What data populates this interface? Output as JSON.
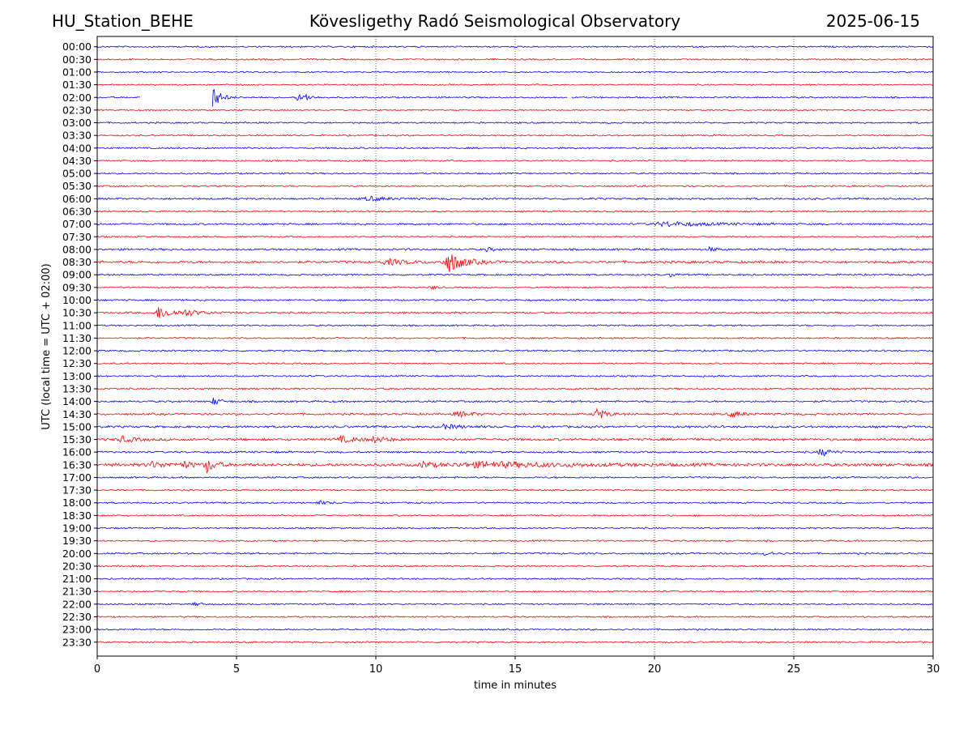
{
  "header": {
    "station": "HU_Station_BEHE",
    "title": "Kövesligethy Radó Seismological Observatory",
    "date": "2025-06-15"
  },
  "chart_data": {
    "type": "line",
    "title": "Kövesligethy Radó Seismological Observatory",
    "xlabel": "time in minutes",
    "ylabel": "UTC (local time = UTC + 02:00)",
    "xlim": [
      0,
      30
    ],
    "xticks": [
      0,
      5,
      10,
      15,
      20,
      25,
      30
    ],
    "vertical_grid": true,
    "colors": [
      "#0000ff",
      "#ff0000"
    ],
    "rows": [
      "00:00",
      "00:30",
      "01:00",
      "01:30",
      "02:00",
      "02:30",
      "03:00",
      "03:30",
      "04:00",
      "04:30",
      "05:00",
      "05:30",
      "06:00",
      "06:30",
      "07:00",
      "07:30",
      "08:00",
      "08:30",
      "09:00",
      "09:30",
      "10:00",
      "10:30",
      "11:00",
      "11:30",
      "12:00",
      "12:30",
      "13:00",
      "13:30",
      "14:00",
      "14:30",
      "15:00",
      "15:30",
      "16:00",
      "16:30",
      "17:00",
      "17:30",
      "18:00",
      "18:30",
      "19:00",
      "19:30",
      "20:00",
      "20:30",
      "21:00",
      "21:30",
      "22:00",
      "22:30",
      "23:00",
      "23:30"
    ],
    "noise": [
      1.0,
      1.0,
      0.9,
      0.9,
      1.0,
      0.9,
      1.0,
      1.0,
      1.1,
      1.0,
      1.0,
      1.0,
      1.2,
      1.0,
      1.2,
      1.0,
      1.3,
      1.5,
      1.1,
      1.0,
      1.1,
      1.2,
      1.0,
      1.0,
      1.1,
      1.0,
      1.0,
      1.1,
      1.2,
      1.3,
      1.4,
      1.6,
      1.2,
      1.9,
      1.1,
      1.0,
      1.0,
      1.0,
      1.0,
      1.0,
      1.1,
      1.0,
      1.0,
      1.0,
      1.0,
      1.0,
      1.0,
      1.0
    ],
    "events": [
      {
        "row": "02:00",
        "t": 4.15,
        "amp": 14,
        "dur": 0.25
      },
      {
        "row": "02:00",
        "t": 7.2,
        "amp": 4,
        "dur": 0.2
      },
      {
        "row": "02:00",
        "t": 7.5,
        "amp": 3.5,
        "dur": 0.2
      },
      {
        "row": "06:00",
        "t": 9.8,
        "amp": 2.5,
        "dur": 0.6
      },
      {
        "row": "07:00",
        "t": 20.5,
        "amp": 2.5,
        "dur": 1.5
      },
      {
        "row": "08:00",
        "t": 14.0,
        "amp": 2.5,
        "dur": 0.2
      },
      {
        "row": "08:00",
        "t": 22.0,
        "amp": 2.5,
        "dur": 0.2
      },
      {
        "row": "08:30",
        "t": 12.65,
        "amp": 12,
        "dur": 0.5
      },
      {
        "row": "08:30",
        "t": 10.5,
        "amp": 3,
        "dur": 0.8
      },
      {
        "row": "09:00",
        "t": 20.6,
        "amp": 3,
        "dur": 0.15
      },
      {
        "row": "09:30",
        "t": 12.0,
        "amp": 3,
        "dur": 0.15
      },
      {
        "row": "10:30",
        "t": 2.25,
        "amp": 8,
        "dur": 0.4
      },
      {
        "row": "10:30",
        "t": 3.2,
        "amp": 3,
        "dur": 0.6
      },
      {
        "row": "14:00",
        "t": 4.2,
        "amp": 5,
        "dur": 0.2
      },
      {
        "row": "14:30",
        "t": 17.95,
        "amp": 7,
        "dur": 0.3
      },
      {
        "row": "14:30",
        "t": 13.0,
        "amp": 3,
        "dur": 0.5
      },
      {
        "row": "14:30",
        "t": 22.8,
        "amp": 3,
        "dur": 0.4
      },
      {
        "row": "15:00",
        "t": 12.5,
        "amp": 2.5,
        "dur": 0.6
      },
      {
        "row": "15:30",
        "t": 0.9,
        "amp": 3.5,
        "dur": 0.4
      },
      {
        "row": "15:30",
        "t": 8.8,
        "amp": 3,
        "dur": 0.6
      },
      {
        "row": "15:30",
        "t": 10.0,
        "amp": 3,
        "dur": 0.4
      },
      {
        "row": "16:00",
        "t": 26.0,
        "amp": 5,
        "dur": 0.3
      },
      {
        "row": "16:30",
        "t": 3.95,
        "amp": 9,
        "dur": 0.25
      },
      {
        "row": "16:30",
        "t": 3.1,
        "amp": 4,
        "dur": 0.3
      },
      {
        "row": "16:30",
        "t": 11.7,
        "amp": 4,
        "dur": 0.3
      },
      {
        "row": "16:30",
        "t": 2.0,
        "amp": 3,
        "dur": 0.6
      },
      {
        "row": "16:30",
        "t": 14.0,
        "amp": 3,
        "dur": 3.0
      },
      {
        "row": "18:00",
        "t": 8.0,
        "amp": 2,
        "dur": 0.3
      },
      {
        "row": "20:00",
        "t": 24.0,
        "amp": 2.5,
        "dur": 0.3
      },
      {
        "row": "22:00",
        "t": 3.5,
        "amp": 2.5,
        "dur": 0.2
      }
    ],
    "gaps": [
      {
        "row": "02:00",
        "from": 1.55,
        "to": 4.1
      },
      {
        "row": "02:00",
        "from": 16.9,
        "to": 17.0
      }
    ]
  }
}
